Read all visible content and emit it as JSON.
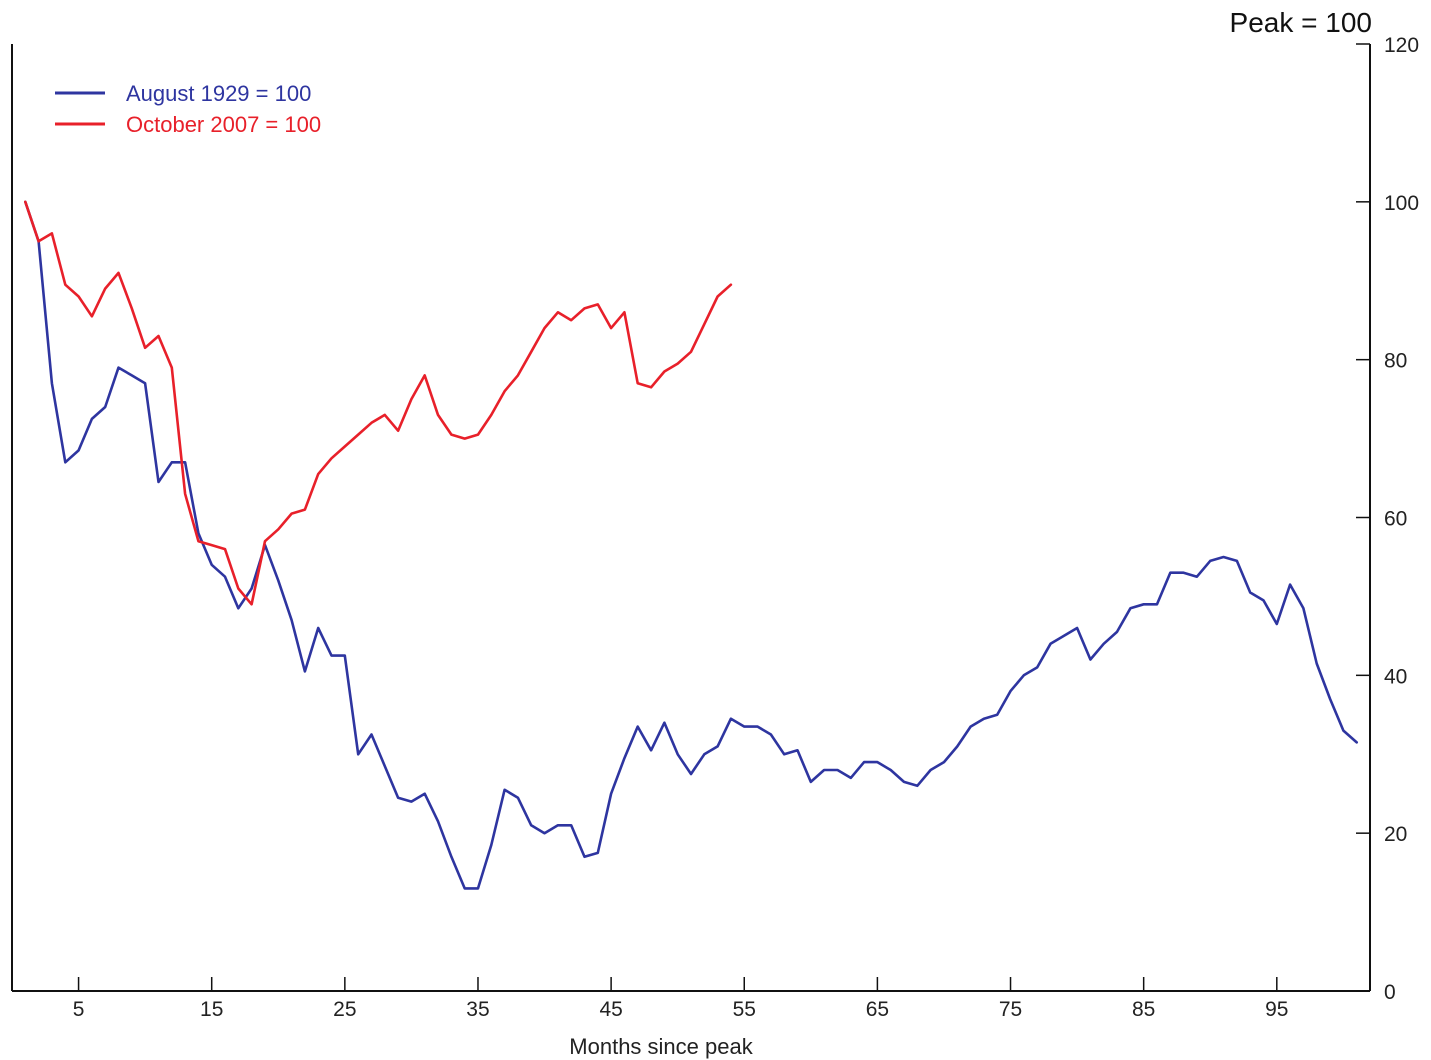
{
  "chart_data": {
    "type": "line",
    "title": "",
    "unit_label": "Peak = 100",
    "xlabel": "Months since peak",
    "ylabel": "",
    "xlim": [
      0,
      102
    ],
    "ylim": [
      0,
      120
    ],
    "x_ticks": [
      5,
      15,
      25,
      35,
      45,
      55,
      65,
      75,
      85,
      95
    ],
    "y_ticks": [
      0,
      20,
      40,
      60,
      80,
      100,
      120
    ],
    "y_axis_side": "right",
    "grid": false,
    "legend": "top-left",
    "series": [
      {
        "name": "August 1929 = 100",
        "color": "#2e35a0",
        "x": [
          1,
          2,
          3,
          4,
          5,
          6,
          7,
          8,
          9,
          10,
          11,
          12,
          13,
          14,
          15,
          16,
          17,
          18,
          19,
          20,
          21,
          22,
          23,
          24,
          25,
          26,
          27,
          28,
          29,
          30,
          31,
          32,
          33,
          34,
          35,
          36,
          37,
          38,
          39,
          40,
          41,
          42,
          43,
          44,
          45,
          46,
          47,
          48,
          49,
          50,
          51,
          52,
          53,
          54,
          55,
          56,
          57,
          58,
          59,
          60,
          61,
          62,
          63,
          64,
          65,
          66,
          67,
          68,
          69,
          70,
          71,
          72,
          73,
          74,
          75,
          76,
          77,
          78,
          79,
          80,
          81,
          82,
          83,
          84,
          85,
          86,
          87,
          88,
          89,
          90,
          91,
          92,
          93,
          94,
          95,
          96,
          97,
          98,
          99,
          100,
          101
        ],
        "values": [
          100,
          95,
          77,
          67,
          68.5,
          72.5,
          74,
          79,
          78,
          77,
          64.5,
          67,
          67,
          58,
          54,
          52.5,
          48.5,
          51,
          56.5,
          52,
          47,
          40.5,
          46,
          42.5,
          42.5,
          30,
          32.5,
          28.5,
          24.5,
          24,
          25,
          21.5,
          17,
          13,
          13,
          18.5,
          25.5,
          24.5,
          21,
          20,
          21,
          21,
          17,
          17.5,
          25,
          29.5,
          33.5,
          30.5,
          34,
          30,
          27.5,
          30,
          31,
          34.5,
          33.5,
          33.5,
          32.5,
          30,
          30.5,
          26.5,
          28,
          28,
          27,
          29,
          29,
          28,
          26.5,
          26,
          28,
          29,
          31,
          33.5,
          34.5,
          35,
          38,
          40,
          41,
          44,
          45,
          46,
          42,
          44,
          45.5,
          48.5,
          49,
          49,
          53,
          53,
          52.5,
          54.5,
          55,
          54.5,
          50.5,
          49.5,
          46.5,
          51.5,
          48.5,
          41.5,
          37,
          33,
          31.5
        ]
      },
      {
        "name": "October 2007 = 100",
        "color": "#e8202a",
        "x": [
          1,
          2,
          3,
          4,
          5,
          6,
          7,
          8,
          9,
          10,
          11,
          12,
          13,
          14,
          15,
          16,
          17,
          18,
          19,
          20,
          21,
          22,
          23,
          24,
          25,
          26,
          27,
          28,
          29,
          30,
          31,
          32,
          33,
          34,
          35,
          36,
          37,
          38,
          39,
          40,
          41,
          42,
          43,
          44,
          45,
          46,
          47,
          48,
          49,
          50,
          51,
          52,
          53,
          54
        ],
        "values": [
          100,
          95,
          96,
          89.5,
          88,
          85.5,
          89,
          91,
          86.5,
          81.5,
          83,
          79,
          63,
          57,
          56.5,
          56,
          51,
          49,
          57,
          58.5,
          60.5,
          61,
          65.5,
          67.5,
          69,
          70.5,
          72,
          73,
          71,
          75,
          78,
          73,
          70.5,
          70,
          70.5,
          73,
          76,
          78,
          81,
          84,
          86,
          85,
          86.5,
          87,
          84,
          86,
          77,
          76.5,
          78.5,
          79.5,
          81,
          84.5,
          88,
          89.5
        ]
      }
    ]
  }
}
